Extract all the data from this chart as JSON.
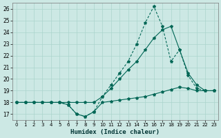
{
  "xlabel": "Humidex (Indice chaleur)",
  "bg_color": "#cce8e4",
  "grid_color": "#aad4cc",
  "line_color": "#006655",
  "xlim": [
    -0.5,
    23.5
  ],
  "ylim": [
    16.5,
    26.5
  ],
  "yticks": [
    17,
    18,
    19,
    20,
    21,
    22,
    23,
    24,
    25,
    26
  ],
  "xticks": [
    0,
    1,
    2,
    3,
    4,
    5,
    6,
    7,
    8,
    9,
    10,
    11,
    12,
    13,
    14,
    15,
    16,
    17,
    18,
    19,
    20,
    21,
    22,
    23
  ],
  "line1_x": [
    0,
    1,
    2,
    3,
    4,
    5,
    6,
    7,
    8,
    9,
    10,
    11,
    12,
    13,
    14,
    15,
    16,
    17,
    18,
    19,
    20,
    21,
    22,
    23
  ],
  "line1_y": [
    18,
    18,
    18,
    18,
    18,
    18,
    17.8,
    17.0,
    16.8,
    17.2,
    18.0,
    18.1,
    18.2,
    18.3,
    18.4,
    18.5,
    18.7,
    18.9,
    19.1,
    19.3,
    19.2,
    19.0,
    19.0,
    19.0
  ],
  "line2_x": [
    0,
    1,
    2,
    3,
    4,
    5,
    6,
    7,
    8,
    9,
    10,
    11,
    12,
    13,
    14,
    15,
    16,
    17,
    18,
    19,
    20,
    21,
    22,
    23
  ],
  "line2_y": [
    18,
    18,
    18,
    18,
    18,
    18,
    18,
    18,
    18,
    18,
    18.5,
    19.2,
    20.0,
    20.8,
    21.5,
    22.5,
    23.5,
    24.2,
    24.5,
    22.5,
    20.5,
    19.5,
    19.0,
    19.0
  ],
  "line3_x": [
    0,
    1,
    2,
    3,
    4,
    5,
    6,
    7,
    8,
    9,
    10,
    11,
    12,
    13,
    14,
    15,
    16,
    17,
    18,
    19,
    20,
    21,
    22,
    23
  ],
  "line3_y": [
    18,
    18,
    18,
    18,
    18,
    18,
    17.8,
    17.0,
    16.8,
    17.2,
    18.5,
    19.5,
    20.5,
    21.5,
    23.0,
    24.8,
    26.2,
    24.5,
    21.5,
    22.5,
    20.3,
    19.2,
    19.0,
    19.0
  ],
  "line3_dashed": true
}
